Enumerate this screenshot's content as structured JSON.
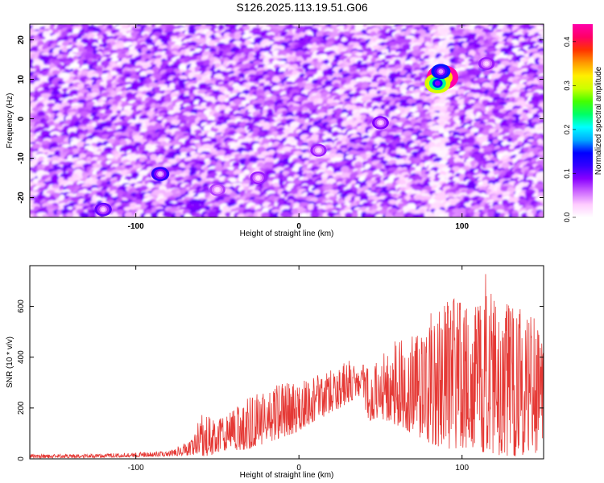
{
  "page": {
    "title": "S126.2025.113.19.51.G06"
  },
  "colorbar": {
    "label": "Normalized spectral amplitude",
    "ticks": [
      "0.0",
      "0.1",
      "0.2",
      "0.3",
      "0.4"
    ],
    "tick_values": [
      0.0,
      0.1,
      0.2,
      0.3,
      0.4
    ],
    "range": [
      0.0,
      0.44
    ],
    "colors": [
      "#ffffff",
      "#ffccff",
      "#cc66ff",
      "#8800ff",
      "#3300ff",
      "#0000ff",
      "#00aaff",
      "#00ffff",
      "#00ff66",
      "#44ff00",
      "#ccff00",
      "#ffee00",
      "#ff9900",
      "#ff3300",
      "#ff0066",
      "#ff00aa"
    ]
  },
  "chart_data": [
    {
      "type": "heatmap",
      "title": "S126.2025.113.19.51.G06",
      "xlabel": "Height of straight line (km)",
      "ylabel": "Frequency (Hz)",
      "xlim": [
        -165,
        150
      ],
      "ylim": [
        -25,
        24
      ],
      "xticks": [
        -100,
        0,
        100
      ],
      "xtick_labels": [
        "-100",
        "0",
        "100"
      ],
      "yticks": [
        20,
        10,
        0,
        -10,
        -20
      ],
      "ytick_labels": [
        "20",
        "10",
        "0",
        "-10",
        "-20"
      ],
      "background_level": "mostly 0.05-0.12 (purple/violet speckle)",
      "hotspots": [
        {
          "x": 88,
          "y": 10.5,
          "amplitude": 0.44
        },
        {
          "x": 85,
          "y": 9,
          "amplitude": 0.3
        },
        {
          "x": 87,
          "y": 12,
          "amplitude": 0.15
        },
        {
          "x": -85,
          "y": -14,
          "amplitude": 0.12
        },
        {
          "x": -120,
          "y": -23,
          "amplitude": 0.1
        },
        {
          "x": 50,
          "y": -1,
          "amplitude": 0.09
        },
        {
          "x": 12,
          "y": -8,
          "amplitude": 0.08
        },
        {
          "x": -25,
          "y": -15,
          "amplitude": 0.08
        },
        {
          "x": 115,
          "y": 14,
          "amplitude": 0.08
        },
        {
          "x": -50,
          "y": -18,
          "amplitude": 0.07
        }
      ]
    },
    {
      "type": "line",
      "xlabel": "Height of straight line (km)",
      "ylabel": "SNR (10 * v/v)",
      "xlim": [
        -165,
        150
      ],
      "ylim": [
        0,
        760
      ],
      "xticks": [
        -100,
        0,
        100
      ],
      "xtick_labels": [
        "-100",
        "0",
        "100"
      ],
      "yticks": [
        0,
        200,
        400,
        600
      ],
      "ytick_labels": [
        "0",
        "200",
        "400",
        "600"
      ],
      "series": [
        {
          "color": "#e53935",
          "envelope_x": [
            -165,
            -130,
            -80,
            -65,
            -62,
            -58,
            -50,
            -40,
            -30,
            -20,
            -10,
            0,
            10,
            20,
            30,
            38,
            43,
            50,
            60,
            70,
            80,
            90,
            100,
            110,
            115,
            120,
            130,
            140,
            150
          ],
          "envelope_min": [
            2,
            4,
            10,
            15,
            20,
            10,
            15,
            30,
            40,
            60,
            80,
            110,
            150,
            180,
            220,
            250,
            150,
            160,
            130,
            100,
            60,
            40,
            40,
            20,
            20,
            15,
            10,
            15,
            30
          ],
          "envelope_max": [
            18,
            18,
            30,
            80,
            150,
            190,
            150,
            200,
            250,
            270,
            300,
            300,
            330,
            360,
            390,
            380,
            350,
            410,
            470,
            500,
            580,
            620,
            640,
            600,
            760,
            640,
            600,
            640,
            440
          ]
        }
      ]
    }
  ]
}
